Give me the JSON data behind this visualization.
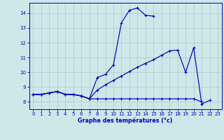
{
  "title": "Graphe des températures (°c)",
  "bg": "#cce8e8",
  "grid_color": "#aacccc",
  "lc": "#0000bb",
  "xlim": [
    -0.5,
    23.5
  ],
  "ylim": [
    7.5,
    14.7
  ],
  "xticks": [
    0,
    1,
    2,
    3,
    4,
    5,
    6,
    7,
    8,
    9,
    10,
    11,
    12,
    13,
    14,
    15,
    16,
    17,
    18,
    19,
    20,
    21,
    22,
    23
  ],
  "yticks": [
    8,
    9,
    10,
    11,
    12,
    13,
    14
  ],
  "line1_y": [
    8.5,
    8.5,
    8.6,
    8.7,
    8.5,
    8.5,
    8.4,
    8.2,
    9.65,
    9.85,
    10.5,
    13.35,
    14.2,
    14.35,
    13.85,
    13.8,
    null,
    null,
    null,
    null,
    null,
    null,
    null,
    null
  ],
  "line2_y": [
    8.5,
    8.5,
    8.6,
    8.7,
    8.5,
    8.5,
    8.4,
    8.2,
    8.2,
    8.2,
    8.2,
    8.2,
    8.2,
    8.2,
    8.2,
    8.2,
    8.2,
    8.2,
    8.2,
    8.2,
    8.2,
    8.0,
    null,
    null
  ],
  "line3_y": [
    8.5,
    8.5,
    8.6,
    8.7,
    8.5,
    8.5,
    8.4,
    8.2,
    8.8,
    9.15,
    9.45,
    9.75,
    10.05,
    10.35,
    10.6,
    10.85,
    11.15,
    11.45,
    11.5,
    10.0,
    11.65,
    7.85,
    8.1,
    null
  ]
}
